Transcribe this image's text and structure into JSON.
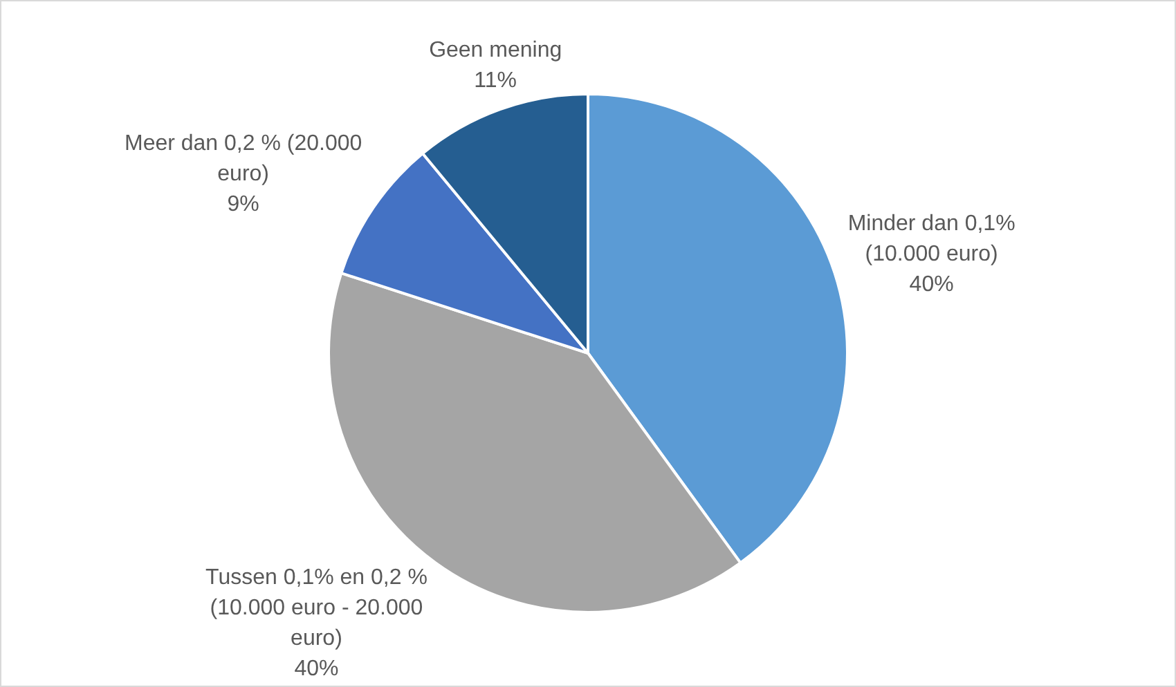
{
  "chart_data": {
    "type": "pie",
    "categories": [
      "Minder dan 0,1% (10.000 euro)",
      "Tussen 0,1% en 0,2 % (10.000 euro - 20.000 euro)",
      "Meer dan 0,2 % (20.000 euro)",
      "Geen mening"
    ],
    "values": [
      40,
      40,
      9,
      11
    ],
    "colors": [
      "#5b9bd5",
      "#a5a5a5",
      "#4472c4",
      "#255e91"
    ],
    "value_labels": [
      "40%",
      "40%",
      "9%",
      "11%"
    ],
    "legend": false
  }
}
